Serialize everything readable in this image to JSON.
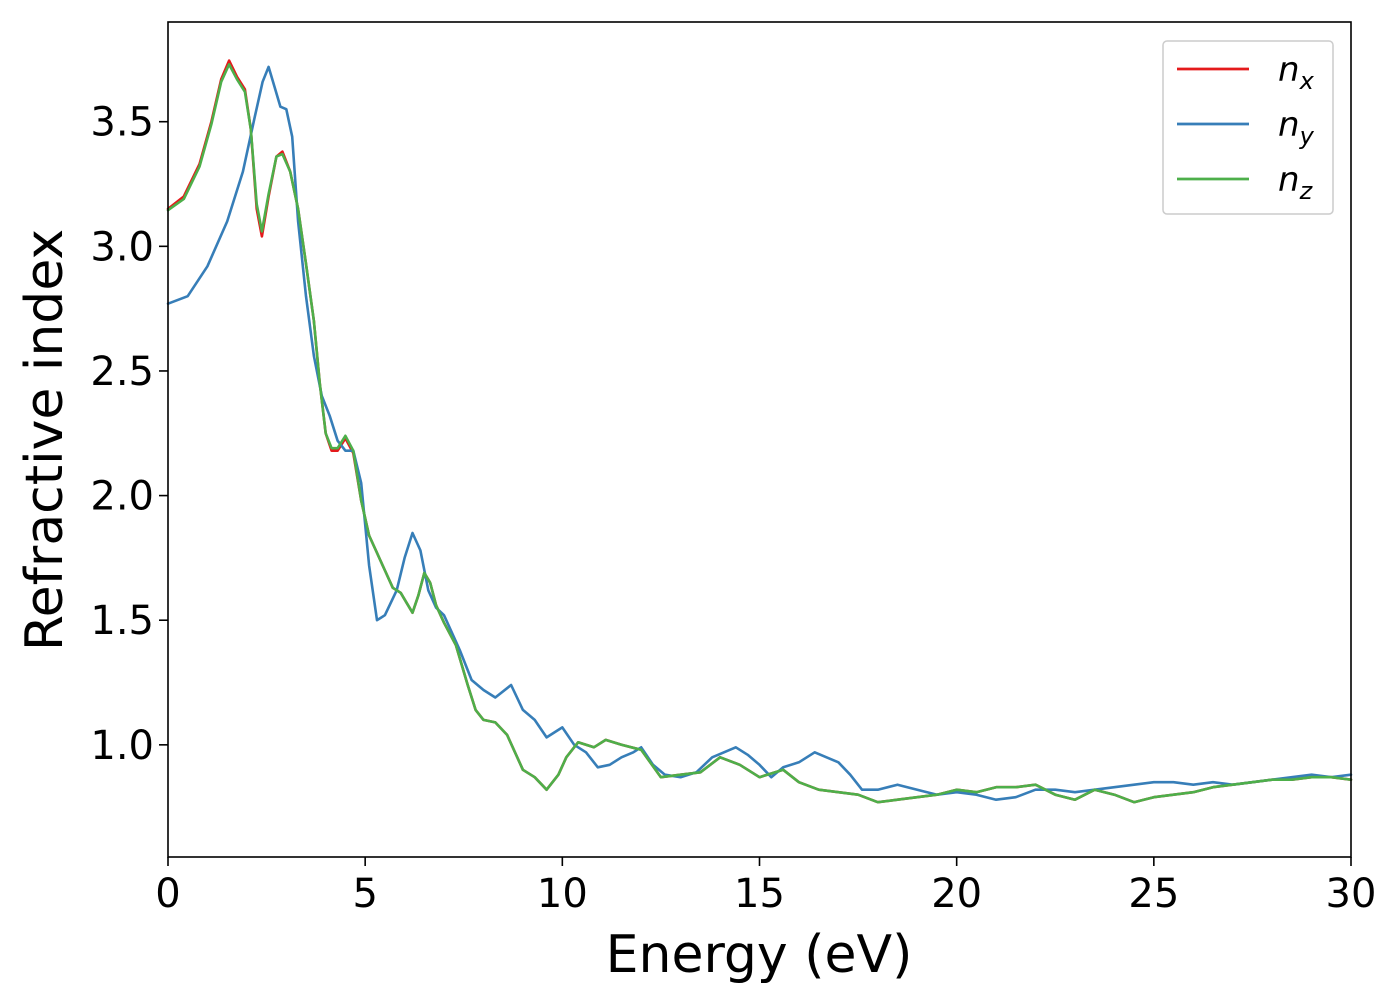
{
  "chart_data": {
    "type": "line",
    "title": "",
    "xlabel": "Energy (eV)",
    "ylabel": "Refractive index",
    "xlim": [
      0,
      30
    ],
    "ylim": [
      0.55,
      3.9
    ],
    "x_ticks": [
      0,
      5,
      10,
      15,
      20,
      25,
      30
    ],
    "y_ticks": [
      1.0,
      1.5,
      2.0,
      2.5,
      3.0,
      3.5
    ],
    "x_tick_labels": [
      "0",
      "5",
      "10",
      "15",
      "20",
      "25",
      "30"
    ],
    "y_tick_labels": [
      "1.0",
      "1.5",
      "2.0",
      "2.5",
      "3.0",
      "3.5"
    ],
    "grid": false,
    "legend_placement": "top-right",
    "series": [
      {
        "name": "n",
        "subscript": "x",
        "color": "#e41a1c",
        "points": [
          [
            0,
            3.15
          ],
          [
            0.4,
            3.2
          ],
          [
            0.8,
            3.33
          ],
          [
            1.1,
            3.5
          ],
          [
            1.35,
            3.67
          ],
          [
            1.55,
            3.745
          ],
          [
            1.75,
            3.68
          ],
          [
            1.95,
            3.63
          ],
          [
            2.1,
            3.47
          ],
          [
            2.25,
            3.15
          ],
          [
            2.38,
            3.04
          ],
          [
            2.55,
            3.2
          ],
          [
            2.75,
            3.36
          ],
          [
            2.9,
            3.38
          ],
          [
            3.1,
            3.3
          ],
          [
            3.3,
            3.15
          ],
          [
            3.5,
            2.93
          ],
          [
            3.7,
            2.7
          ],
          [
            3.85,
            2.45
          ],
          [
            4.0,
            2.25
          ],
          [
            4.15,
            2.18
          ],
          [
            4.3,
            2.18
          ],
          [
            4.5,
            2.23
          ],
          [
            4.7,
            2.17
          ],
          [
            4.9,
            1.98
          ],
          [
            5.1,
            1.84
          ],
          [
            5.3,
            1.77
          ],
          [
            5.5,
            1.7
          ],
          [
            5.7,
            1.63
          ],
          [
            5.9,
            1.61
          ],
          [
            6.05,
            1.57
          ],
          [
            6.2,
            1.53
          ],
          [
            6.35,
            1.6
          ],
          [
            6.5,
            1.69
          ],
          [
            6.65,
            1.65
          ],
          [
            6.8,
            1.56
          ],
          [
            7.0,
            1.49
          ],
          [
            7.3,
            1.4
          ],
          [
            7.6,
            1.24
          ],
          [
            7.8,
            1.14
          ],
          [
            8.0,
            1.1
          ],
          [
            8.3,
            1.09
          ],
          [
            8.6,
            1.04
          ],
          [
            9.0,
            0.9
          ],
          [
            9.3,
            0.87
          ],
          [
            9.6,
            0.82
          ],
          [
            9.9,
            0.88
          ],
          [
            10.1,
            0.95
          ],
          [
            10.4,
            1.01
          ],
          [
            10.8,
            0.99
          ],
          [
            11.1,
            1.02
          ],
          [
            11.5,
            1.0
          ],
          [
            12.0,
            0.98
          ],
          [
            12.5,
            0.87
          ],
          [
            13.0,
            0.88
          ],
          [
            13.5,
            0.89
          ],
          [
            14.0,
            0.95
          ],
          [
            14.5,
            0.92
          ],
          [
            15.0,
            0.87
          ],
          [
            15.6,
            0.9
          ],
          [
            16.0,
            0.85
          ],
          [
            16.5,
            0.82
          ],
          [
            17.0,
            0.81
          ],
          [
            17.5,
            0.8
          ],
          [
            18.0,
            0.77
          ],
          [
            18.5,
            0.78
          ],
          [
            19.0,
            0.79
          ],
          [
            19.5,
            0.8
          ],
          [
            20.0,
            0.82
          ],
          [
            20.5,
            0.81
          ],
          [
            21.0,
            0.83
          ],
          [
            21.5,
            0.83
          ],
          [
            22.0,
            0.84
          ],
          [
            22.5,
            0.8
          ],
          [
            23.0,
            0.78
          ],
          [
            23.5,
            0.82
          ],
          [
            24.0,
            0.8
          ],
          [
            24.5,
            0.77
          ],
          [
            25.0,
            0.79
          ],
          [
            25.5,
            0.8
          ],
          [
            26.0,
            0.81
          ],
          [
            26.5,
            0.83
          ],
          [
            27.0,
            0.84
          ],
          [
            27.5,
            0.85
          ],
          [
            28.0,
            0.86
          ],
          [
            28.5,
            0.86
          ],
          [
            29.0,
            0.87
          ],
          [
            29.5,
            0.87
          ],
          [
            30.0,
            0.86
          ]
        ]
      },
      {
        "name": "n",
        "subscript": "y",
        "color": "#377eb8",
        "points": [
          [
            0,
            2.77
          ],
          [
            0.5,
            2.8
          ],
          [
            1.0,
            2.92
          ],
          [
            1.5,
            3.1
          ],
          [
            1.9,
            3.3
          ],
          [
            2.2,
            3.52
          ],
          [
            2.4,
            3.66
          ],
          [
            2.55,
            3.72
          ],
          [
            2.7,
            3.64
          ],
          [
            2.85,
            3.56
          ],
          [
            3.0,
            3.55
          ],
          [
            3.15,
            3.44
          ],
          [
            3.3,
            3.1
          ],
          [
            3.5,
            2.8
          ],
          [
            3.7,
            2.56
          ],
          [
            3.9,
            2.4
          ],
          [
            4.1,
            2.32
          ],
          [
            4.3,
            2.22
          ],
          [
            4.5,
            2.18
          ],
          [
            4.7,
            2.18
          ],
          [
            4.9,
            2.05
          ],
          [
            5.1,
            1.72
          ],
          [
            5.3,
            1.5
          ],
          [
            5.5,
            1.52
          ],
          [
            5.8,
            1.62
          ],
          [
            6.0,
            1.75
          ],
          [
            6.2,
            1.85
          ],
          [
            6.4,
            1.78
          ],
          [
            6.6,
            1.62
          ],
          [
            6.8,
            1.55
          ],
          [
            7.0,
            1.52
          ],
          [
            7.4,
            1.38
          ],
          [
            7.7,
            1.26
          ],
          [
            8.0,
            1.22
          ],
          [
            8.3,
            1.19
          ],
          [
            8.7,
            1.24
          ],
          [
            9.0,
            1.14
          ],
          [
            9.3,
            1.1
          ],
          [
            9.6,
            1.03
          ],
          [
            10.0,
            1.07
          ],
          [
            10.3,
            1.0
          ],
          [
            10.6,
            0.97
          ],
          [
            10.9,
            0.91
          ],
          [
            11.2,
            0.92
          ],
          [
            11.5,
            0.95
          ],
          [
            11.8,
            0.97
          ],
          [
            12.0,
            0.99
          ],
          [
            12.3,
            0.92
          ],
          [
            12.6,
            0.88
          ],
          [
            13.0,
            0.87
          ],
          [
            13.4,
            0.89
          ],
          [
            13.8,
            0.95
          ],
          [
            14.1,
            0.97
          ],
          [
            14.4,
            0.99
          ],
          [
            14.7,
            0.96
          ],
          [
            15.0,
            0.92
          ],
          [
            15.3,
            0.87
          ],
          [
            15.6,
            0.91
          ],
          [
            16.0,
            0.93
          ],
          [
            16.4,
            0.97
          ],
          [
            16.7,
            0.95
          ],
          [
            17.0,
            0.93
          ],
          [
            17.3,
            0.88
          ],
          [
            17.6,
            0.82
          ],
          [
            18.0,
            0.82
          ],
          [
            18.5,
            0.84
          ],
          [
            19.0,
            0.82
          ],
          [
            19.5,
            0.8
          ],
          [
            20.0,
            0.81
          ],
          [
            20.5,
            0.8
          ],
          [
            21.0,
            0.78
          ],
          [
            21.5,
            0.79
          ],
          [
            22.0,
            0.82
          ],
          [
            22.5,
            0.82
          ],
          [
            23.0,
            0.81
          ],
          [
            23.5,
            0.82
          ],
          [
            24.0,
            0.83
          ],
          [
            24.5,
            0.84
          ],
          [
            25.0,
            0.85
          ],
          [
            25.5,
            0.85
          ],
          [
            26.0,
            0.84
          ],
          [
            26.5,
            0.85
          ],
          [
            27.0,
            0.84
          ],
          [
            27.5,
            0.85
          ],
          [
            28.0,
            0.86
          ],
          [
            28.5,
            0.87
          ],
          [
            29.0,
            0.88
          ],
          [
            29.5,
            0.87
          ],
          [
            30.0,
            0.88
          ]
        ]
      },
      {
        "name": "n",
        "subscript": "z",
        "color": "#4daf4a",
        "points": [
          [
            0,
            3.145
          ],
          [
            0.4,
            3.19
          ],
          [
            0.8,
            3.32
          ],
          [
            1.1,
            3.49
          ],
          [
            1.35,
            3.66
          ],
          [
            1.55,
            3.73
          ],
          [
            1.75,
            3.67
          ],
          [
            1.95,
            3.62
          ],
          [
            2.1,
            3.47
          ],
          [
            2.25,
            3.17
          ],
          [
            2.38,
            3.06
          ],
          [
            2.55,
            3.21
          ],
          [
            2.75,
            3.36
          ],
          [
            2.9,
            3.37
          ],
          [
            3.1,
            3.3
          ],
          [
            3.3,
            3.15
          ],
          [
            3.5,
            2.93
          ],
          [
            3.7,
            2.7
          ],
          [
            3.85,
            2.45
          ],
          [
            4.0,
            2.25
          ],
          [
            4.15,
            2.19
          ],
          [
            4.3,
            2.19
          ],
          [
            4.5,
            2.24
          ],
          [
            4.7,
            2.18
          ],
          [
            4.9,
            1.98
          ],
          [
            5.1,
            1.84
          ],
          [
            5.3,
            1.77
          ],
          [
            5.5,
            1.7
          ],
          [
            5.7,
            1.63
          ],
          [
            5.9,
            1.61
          ],
          [
            6.05,
            1.57
          ],
          [
            6.2,
            1.53
          ],
          [
            6.35,
            1.6
          ],
          [
            6.5,
            1.69
          ],
          [
            6.65,
            1.65
          ],
          [
            6.8,
            1.56
          ],
          [
            7.0,
            1.49
          ],
          [
            7.3,
            1.4
          ],
          [
            7.6,
            1.24
          ],
          [
            7.8,
            1.14
          ],
          [
            8.0,
            1.1
          ],
          [
            8.3,
            1.09
          ],
          [
            8.6,
            1.04
          ],
          [
            9.0,
            0.9
          ],
          [
            9.3,
            0.87
          ],
          [
            9.6,
            0.82
          ],
          [
            9.9,
            0.88
          ],
          [
            10.1,
            0.95
          ],
          [
            10.4,
            1.01
          ],
          [
            10.8,
            0.99
          ],
          [
            11.1,
            1.02
          ],
          [
            11.5,
            1.0
          ],
          [
            12.0,
            0.98
          ],
          [
            12.5,
            0.87
          ],
          [
            13.0,
            0.88
          ],
          [
            13.5,
            0.89
          ],
          [
            14.0,
            0.95
          ],
          [
            14.5,
            0.92
          ],
          [
            15.0,
            0.87
          ],
          [
            15.6,
            0.9
          ],
          [
            16.0,
            0.85
          ],
          [
            16.5,
            0.82
          ],
          [
            17.0,
            0.81
          ],
          [
            17.5,
            0.8
          ],
          [
            18.0,
            0.77
          ],
          [
            18.5,
            0.78
          ],
          [
            19.0,
            0.79
          ],
          [
            19.5,
            0.8
          ],
          [
            20.0,
            0.82
          ],
          [
            20.5,
            0.81
          ],
          [
            21.0,
            0.83
          ],
          [
            21.5,
            0.83
          ],
          [
            22.0,
            0.84
          ],
          [
            22.5,
            0.8
          ],
          [
            23.0,
            0.78
          ],
          [
            23.5,
            0.82
          ],
          [
            24.0,
            0.8
          ],
          [
            24.5,
            0.77
          ],
          [
            25.0,
            0.79
          ],
          [
            25.5,
            0.8
          ],
          [
            26.0,
            0.81
          ],
          [
            26.5,
            0.83
          ],
          [
            27.0,
            0.84
          ],
          [
            27.5,
            0.85
          ],
          [
            28.0,
            0.86
          ],
          [
            28.5,
            0.86
          ],
          [
            29.0,
            0.87
          ],
          [
            29.5,
            0.87
          ],
          [
            30.0,
            0.86
          ]
        ]
      }
    ]
  }
}
